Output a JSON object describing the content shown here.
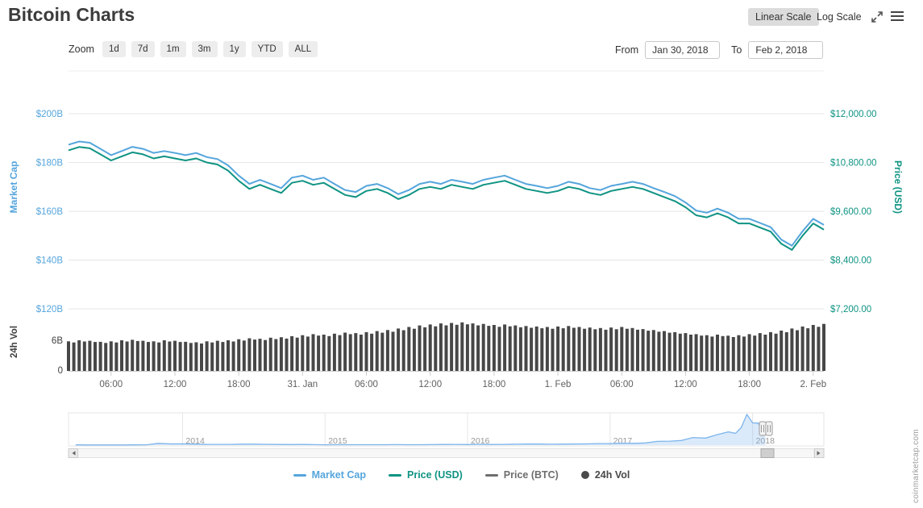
{
  "header": {
    "title": "Bitcoin Charts",
    "linear_scale": "Linear Scale",
    "log_scale": "Log Scale"
  },
  "toolbar": {
    "zoom_label": "Zoom",
    "zoom_buttons": [
      "1d",
      "7d",
      "1m",
      "3m",
      "1y",
      "YTD",
      "ALL"
    ],
    "from_label": "From",
    "from_value": "Jan 30, 2018",
    "to_label": "To",
    "to_value": "Feb 2, 2018"
  },
  "legend": {
    "items": [
      {
        "label": "Market Cap",
        "marker": "line",
        "color": "#55a5dc"
      },
      {
        "label": "Price (USD)",
        "marker": "line",
        "color": "#0f9383"
      },
      {
        "label": "Price (BTC)",
        "marker": "line",
        "color": "#6e6e6e"
      },
      {
        "label": "24h Vol",
        "marker": "circle",
        "color": "#4a4a4a"
      }
    ]
  },
  "watermark": "coinmarketcap.com",
  "chart_data": {
    "type": "line",
    "x_range": "Jan 30, 2018 02:00 to Feb 2, 2018 01:00, hourly points",
    "x_tick_labels": [
      "06:00",
      "12:00",
      "18:00",
      "31. Jan",
      "06:00",
      "12:00",
      "18:00",
      "1. Feb",
      "06:00",
      "12:00",
      "18:00",
      "2. Feb"
    ],
    "x_tick_indices": [
      4,
      10,
      16,
      22,
      28,
      34,
      40,
      46,
      52,
      58,
      64,
      70
    ],
    "left_axis": {
      "title": "Market Cap",
      "color": "#55a5dc",
      "ticks": [
        "$200B",
        "$180B",
        "$160B",
        "$140B",
        "$120B"
      ],
      "max_b": 200,
      "min_b": 120
    },
    "right_axis": {
      "title": "Price (USD)",
      "color": "#0f9383",
      "ticks": [
        "$12,000.00",
        "$10,800.00",
        "$9,600.00",
        "$8,400.00",
        "$7,200.00"
      ],
      "max": 12000,
      "min": 7200
    },
    "volume_axis": {
      "title": "24h Vol",
      "color": "#3f3f3f",
      "ticks": [
        "6B",
        "0"
      ],
      "tick_values_b": [
        6,
        0
      ]
    },
    "series": [
      {
        "name": "Market Cap",
        "unit": "USD billions",
        "color": "#55a5dc",
        "values": [
          187.3,
          188.6,
          188.1,
          185.6,
          183.0,
          184.7,
          186.4,
          185.6,
          183.9,
          184.7,
          183.9,
          183.0,
          183.9,
          182.2,
          181.4,
          178.8,
          174.6,
          171.2,
          172.9,
          171.2,
          169.5,
          173.8,
          174.6,
          172.9,
          173.8,
          171.2,
          168.7,
          167.9,
          170.4,
          171.2,
          169.5,
          167.0,
          168.7,
          171.2,
          172.1,
          171.2,
          172.9,
          172.1,
          171.2,
          172.9,
          173.8,
          174.6,
          172.9,
          171.2,
          170.4,
          169.5,
          170.4,
          172.1,
          171.2,
          169.5,
          168.7,
          170.4,
          171.2,
          172.1,
          171.2,
          169.5,
          167.9,
          166.2,
          163.6,
          160.3,
          159.4,
          161.1,
          159.4,
          156.9,
          156.9,
          155.2,
          153.5,
          148.4,
          145.9,
          151.8,
          156.9,
          154.4
        ]
      },
      {
        "name": "Price (USD)",
        "unit": "USD",
        "color": "#0f9383",
        "values": [
          11100,
          11180,
          11150,
          11000,
          10850,
          10950,
          11050,
          11000,
          10900,
          10950,
          10900,
          10850,
          10900,
          10800,
          10750,
          10600,
          10350,
          10150,
          10250,
          10150,
          10050,
          10300,
          10350,
          10250,
          10300,
          10150,
          10000,
          9950,
          10100,
          10150,
          10050,
          9900,
          10000,
          10150,
          10200,
          10150,
          10250,
          10200,
          10150,
          10250,
          10300,
          10350,
          10250,
          10150,
          10100,
          10050,
          10100,
          10200,
          10150,
          10050,
          10000,
          10100,
          10150,
          10200,
          10150,
          10050,
          9950,
          9850,
          9700,
          9500,
          9450,
          9550,
          9450,
          9300,
          9300,
          9200,
          9100,
          8800,
          8650,
          9000,
          9300,
          9150
        ]
      },
      {
        "name": "24h Vol",
        "type": "bar",
        "unit": "USD billions",
        "color": "#474747",
        "values": [
          5.8,
          6.0,
          5.9,
          5.7,
          5.8,
          6.0,
          6.1,
          5.9,
          5.8,
          6.0,
          5.9,
          5.7,
          5.6,
          5.8,
          5.9,
          6.0,
          6.2,
          6.4,
          6.3,
          6.5,
          6.6,
          6.8,
          7.0,
          7.2,
          7.1,
          7.3,
          7.5,
          7.4,
          7.6,
          7.8,
          8.0,
          8.3,
          8.6,
          8.9,
          9.1,
          9.3,
          9.4,
          9.5,
          9.3,
          9.2,
          9.0,
          9.1,
          8.9,
          8.8,
          8.7,
          8.6,
          8.7,
          8.8,
          8.6,
          8.5,
          8.4,
          8.5,
          8.6,
          8.4,
          8.2,
          8.0,
          7.8,
          7.6,
          7.4,
          7.2,
          7.0,
          7.1,
          6.9,
          7.0,
          7.2,
          7.4,
          7.6,
          7.9,
          8.3,
          8.7,
          9.0,
          9.2
        ]
      }
    ],
    "navigator": {
      "series_name": "Price (USD), all time",
      "color": "#7cb5ec",
      "year_labels": [
        "2014",
        "2015",
        "2016",
        "2017",
        "2018"
      ],
      "year_values": [
        2014,
        2015,
        2016,
        2017,
        2018
      ],
      "x": [
        2013.25,
        2013.33,
        2013.42,
        2013.5,
        2013.58,
        2013.67,
        2013.75,
        2013.83,
        2013.92,
        2014.0,
        2014.08,
        2014.17,
        2014.25,
        2014.33,
        2014.42,
        2014.5,
        2014.58,
        2014.67,
        2014.75,
        2014.83,
        2014.92,
        2015.0,
        2015.08,
        2015.17,
        2015.25,
        2015.33,
        2015.42,
        2015.5,
        2015.58,
        2015.67,
        2015.75,
        2015.83,
        2015.92,
        2016.0,
        2016.08,
        2016.17,
        2016.25,
        2016.33,
        2016.42,
        2016.5,
        2016.58,
        2016.67,
        2016.75,
        2016.83,
        2016.92,
        2017.0,
        2017.08,
        2017.17,
        2017.25,
        2017.33,
        2017.42,
        2017.5,
        2017.58,
        2017.67,
        2017.75,
        2017.83,
        2017.88,
        2017.92,
        2017.96,
        2018.0,
        2018.04,
        2018.06,
        2018.09
      ],
      "values": [
        135,
        120,
        100,
        95,
        110,
        130,
        200,
        1100,
        750,
        800,
        600,
        450,
        450,
        450,
        600,
        620,
        500,
        400,
        340,
        380,
        320,
        220,
        250,
        250,
        235,
        230,
        260,
        280,
        230,
        235,
        310,
        380,
        430,
        370,
        440,
        415,
        450,
        530,
        670,
        660,
        575,
        610,
        700,
        745,
        960,
        970,
        1180,
        1080,
        1350,
        2300,
        2450,
        2870,
        4700,
        4340,
        6450,
        8200,
        7300,
        10900,
        19000,
        13800,
        13600,
        10100,
        9100
      ]
    }
  }
}
